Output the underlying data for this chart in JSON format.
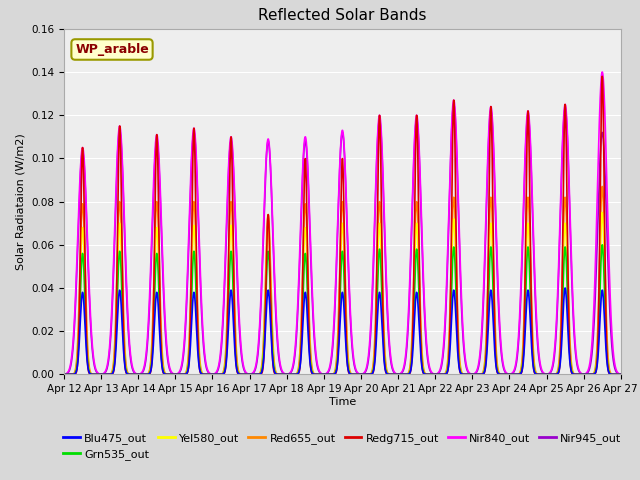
{
  "title": "Reflected Solar Bands",
  "xlabel": "Time",
  "ylabel": "Solar Radiataion (W/m2)",
  "ylim": [
    0,
    0.16
  ],
  "yticks": [
    0.0,
    0.02,
    0.04,
    0.06,
    0.08,
    0.1,
    0.12,
    0.14,
    0.16
  ],
  "fig_bg_color": "#d8d8d8",
  "plot_bg_color": "#eeeeee",
  "annotation_text": "WP_arable",
  "annotation_color": "#8b0000",
  "annotation_bg": "#ffffcc",
  "annotation_border": "#999900",
  "series": [
    {
      "name": "Blu475_out",
      "color": "#0000ff",
      "sigma": 0.065,
      "peaks": [
        0.038,
        0.039,
        0.038,
        0.038,
        0.039,
        0.039,
        0.038,
        0.038,
        0.038,
        0.038,
        0.039,
        0.039,
        0.039,
        0.04,
        0.039
      ]
    },
    {
      "name": "Grn535_out",
      "color": "#00dd00",
      "sigma": 0.065,
      "peaks": [
        0.056,
        0.057,
        0.056,
        0.057,
        0.057,
        0.057,
        0.056,
        0.057,
        0.058,
        0.058,
        0.059,
        0.059,
        0.059,
        0.059,
        0.06
      ]
    },
    {
      "name": "Yel580_out",
      "color": "#ffff00",
      "sigma": 0.065,
      "peaks": [
        0.068,
        0.07,
        0.068,
        0.069,
        0.069,
        0.069,
        0.068,
        0.07,
        0.07,
        0.07,
        0.072,
        0.07,
        0.07,
        0.07,
        0.075
      ]
    },
    {
      "name": "Red655_out",
      "color": "#ff8800",
      "sigma": 0.072,
      "peaks": [
        0.079,
        0.08,
        0.08,
        0.08,
        0.08,
        0.074,
        0.079,
        0.08,
        0.08,
        0.08,
        0.082,
        0.082,
        0.082,
        0.082,
        0.087
      ]
    },
    {
      "name": "Redg715_out",
      "color": "#dd0000",
      "sigma": 0.055,
      "peaks": [
        0.105,
        0.115,
        0.111,
        0.114,
        0.11,
        0.074,
        0.1,
        0.1,
        0.12,
        0.12,
        0.127,
        0.124,
        0.122,
        0.125,
        0.138
      ]
    },
    {
      "name": "Nir840_out",
      "color": "#ff00ff",
      "sigma": 0.13,
      "peaks": [
        0.105,
        0.115,
        0.111,
        0.114,
        0.11,
        0.109,
        0.11,
        0.113,
        0.12,
        0.12,
        0.127,
        0.124,
        0.122,
        0.125,
        0.14
      ]
    },
    {
      "name": "Nir945_out",
      "color": "#9900cc",
      "sigma": 0.125,
      "peaks": [
        0.103,
        0.113,
        0.108,
        0.112,
        0.108,
        0.108,
        0.108,
        0.112,
        0.118,
        0.118,
        0.125,
        0.122,
        0.12,
        0.123,
        0.112
      ]
    }
  ],
  "n_days": 15,
  "x_tick_labels": [
    "Apr 12",
    "Apr 13",
    "Apr 14",
    "Apr 15",
    "Apr 16",
    "Apr 17",
    "Apr 18",
    "Apr 19",
    "Apr 20",
    "Apr 21",
    "Apr 22",
    "Apr 23",
    "Apr 24",
    "Apr 25",
    "Apr 26",
    "Apr 27"
  ],
  "title_fontsize": 11,
  "axis_fontsize": 8,
  "tick_fontsize": 7.5,
  "legend_fontsize": 8
}
